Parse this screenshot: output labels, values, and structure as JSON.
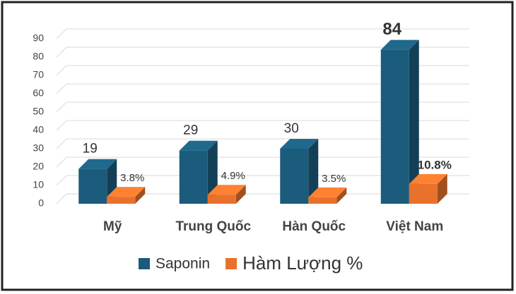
{
  "chart_data": {
    "type": "bar3d",
    "categories": [
      "Mỹ",
      "Trung Quốc",
      "Hàn Quốc",
      "Việt Nam"
    ],
    "series": [
      {
        "name": "Saponin",
        "color": "#1b5b7b",
        "values": [
          19,
          29,
          30,
          84
        ]
      },
      {
        "name": "Hàm Lượng %",
        "color": "#e8712c",
        "values": [
          3.8,
          4.9,
          3.5,
          10.8
        ],
        "value_labels": [
          "3.8%",
          "4.9%",
          "3.5%",
          "10.8%"
        ]
      }
    ],
    "ylim": [
      0,
      90
    ],
    "yticks": [
      0,
      10,
      20,
      30,
      40,
      50,
      60,
      70,
      80,
      90
    ],
    "grid": true
  }
}
